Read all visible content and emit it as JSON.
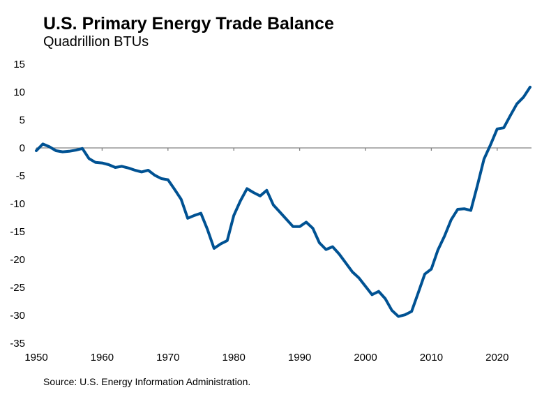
{
  "chart_data": {
    "type": "line",
    "title": "U.S. Primary Energy Trade Balance",
    "subtitle": "Quadrillion BTUs",
    "source": "Source: U.S. Energy Information Administration.",
    "xlim": [
      1950,
      2025
    ],
    "ylim": [
      -35,
      15
    ],
    "x_ticks": [
      1950,
      1960,
      1970,
      1980,
      1990,
      2000,
      2010,
      2020
    ],
    "y_ticks": [
      15,
      10,
      5,
      0,
      -5,
      -10,
      -15,
      -20,
      -25,
      -30,
      -35
    ],
    "grid": false,
    "line_color": "#005293",
    "axis_color": "#808080",
    "x": [
      1950,
      1951,
      1952,
      1953,
      1954,
      1955,
      1956,
      1957,
      1958,
      1959,
      1960,
      1961,
      1962,
      1963,
      1964,
      1965,
      1966,
      1967,
      1968,
      1969,
      1970,
      1971,
      1972,
      1973,
      1974,
      1975,
      1976,
      1977,
      1978,
      1979,
      1980,
      1981,
      1982,
      1983,
      1984,
      1985,
      1986,
      1987,
      1988,
      1989,
      1990,
      1991,
      1992,
      1993,
      1994,
      1995,
      1996,
      1997,
      1998,
      1999,
      2000,
      2001,
      2002,
      2003,
      2004,
      2005,
      2006,
      2007,
      2008,
      2009,
      2010,
      2011,
      2012,
      2013,
      2014,
      2015,
      2016,
      2017,
      2018,
      2019,
      2020,
      2021,
      2022,
      2023,
      2024,
      2025
    ],
    "y": [
      -0.5,
      0.7,
      0.2,
      -0.5,
      -0.7,
      -0.6,
      -0.4,
      -0.1,
      -1.9,
      -2.6,
      -2.7,
      -3.0,
      -3.5,
      -3.3,
      -3.6,
      -4.0,
      -4.3,
      -4.0,
      -4.9,
      -5.5,
      -5.7,
      -7.4,
      -9.2,
      -12.6,
      -12.1,
      -11.7,
      -14.6,
      -18.0,
      -17.2,
      -16.6,
      -12.1,
      -9.5,
      -7.3,
      -8.0,
      -8.6,
      -7.6,
      -10.2,
      -11.5,
      -12.8,
      -14.1,
      -14.1,
      -13.3,
      -14.4,
      -17.0,
      -18.2,
      -17.7,
      -19.0,
      -20.6,
      -22.2,
      -23.3,
      -24.8,
      -26.3,
      -25.7,
      -27.0,
      -29.1,
      -30.2,
      -29.9,
      -29.3,
      -26.0,
      -22.6,
      -21.7,
      -18.3,
      -15.8,
      -12.9,
      -11.0,
      -10.9,
      -11.2,
      -6.7,
      -2.0,
      0.6,
      3.4,
      3.6,
      5.8,
      7.9,
      9.1,
      10.9
    ]
  }
}
